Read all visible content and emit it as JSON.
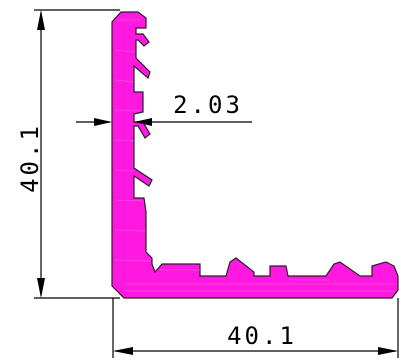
{
  "drawing": {
    "profile_color": "#ff19e0",
    "dimensions": {
      "height_label": "40.1",
      "width_label": "40.1",
      "wall_thickness_label": "2.03"
    }
  }
}
